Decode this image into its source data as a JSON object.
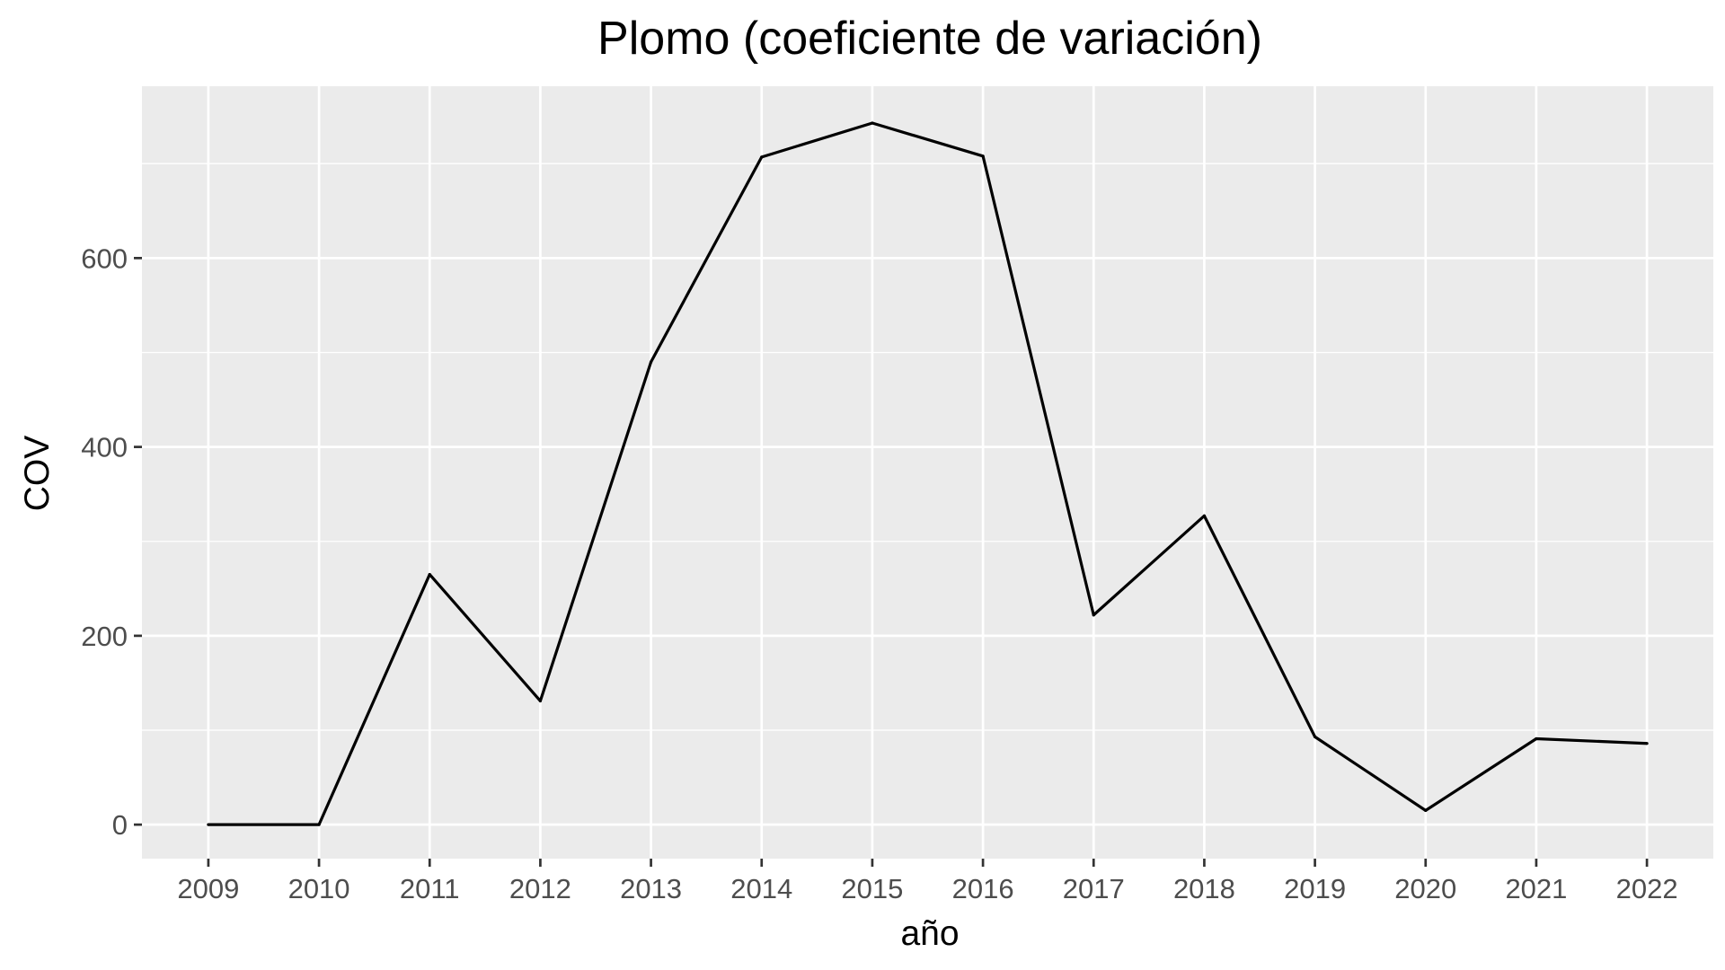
{
  "chart_data": {
    "type": "line",
    "title": "Plomo (coeficiente de variación)",
    "xlabel": "año",
    "ylabel": "COV",
    "x": [
      2009,
      2010,
      2011,
      2012,
      2013,
      2014,
      2015,
      2016,
      2017,
      2018,
      2019,
      2020,
      2021,
      2022
    ],
    "x_tick_labels": [
      "2009",
      "2010",
      "2011",
      "2012",
      "2013",
      "2014",
      "2015",
      "2016",
      "2017",
      "2018",
      "2019",
      "2020",
      "2021",
      "2022"
    ],
    "y_ticks": [
      0,
      200,
      400,
      600
    ],
    "y_tick_labels": [
      "0",
      "200",
      "400",
      "600"
    ],
    "ylim": [
      -36,
      782
    ],
    "xlim": [
      2008.4,
      2022.6
    ],
    "grid": true,
    "series": [
      {
        "values": [
          0,
          0,
          265,
          131,
          490,
          707,
          743,
          708,
          222,
          327,
          93,
          15,
          91,
          86
        ],
        "color": "#000000"
      }
    ],
    "colors": {
      "panel_background": "#ebebeb",
      "grid_line": "#ffffff",
      "tick_text": "#4d4d4d",
      "tick_mark": "#333333"
    }
  }
}
